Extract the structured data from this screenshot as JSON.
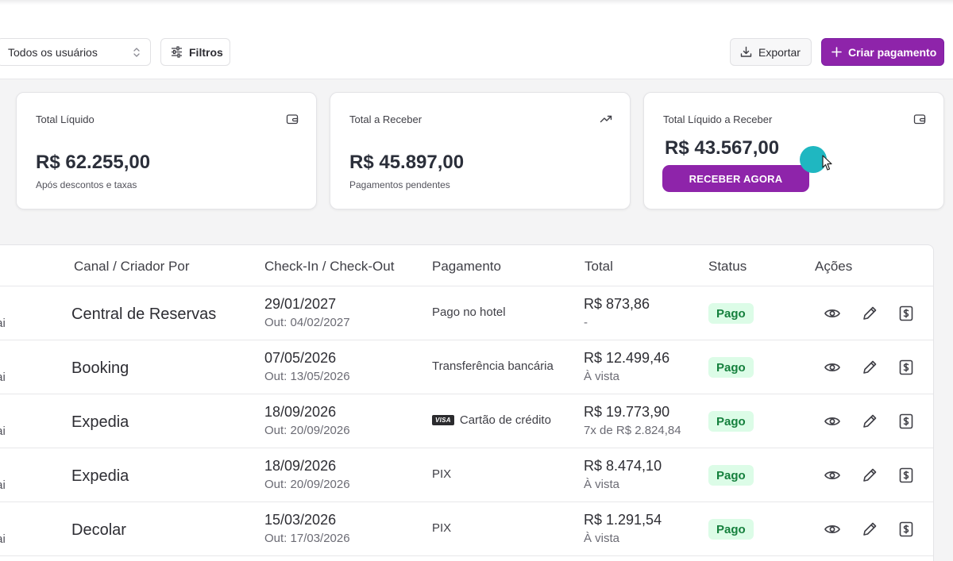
{
  "toolbar": {
    "user_filter_value": "Todos os usuários",
    "filters_label": "Filtros",
    "export_label": "Exportar",
    "create_label": "Criar pagamento"
  },
  "cards": [
    {
      "label": "Total Líquido",
      "value": "R$ 62.255,00",
      "sub": "Após descontos e taxas",
      "icon": "wallet-icon"
    },
    {
      "label": "Total a Receber",
      "value": "R$ 45.897,00",
      "sub": "Pagamentos pendentes",
      "icon": "trending-up-icon"
    },
    {
      "label": "Total Líquido a Receber",
      "value": "R$ 43.567,00",
      "button": "RECEBER AGORA",
      "icon": "wallet-icon"
    }
  ],
  "table": {
    "headers": {
      "channel": "Canal / Criador Por",
      "checkin": "Check-In / Check-Out",
      "payment": "Pagamento",
      "total": "Total",
      "status": "Status",
      "actions": "Ações"
    },
    "rows": [
      {
        "trunc": ".ai",
        "channel": "Central de Reservas",
        "checkin": "29/01/2027",
        "checkout": "Out: 04/02/2027",
        "payment": "Pago no hotel",
        "card_brand": "",
        "total": "R$ 873,86",
        "installments": "-",
        "status": "Pago"
      },
      {
        "trunc": ".ai",
        "channel": "Booking",
        "checkin": "07/05/2026",
        "checkout": "Out: 13/05/2026",
        "payment": "Transferência bancária",
        "card_brand": "",
        "total": "R$ 12.499,46",
        "installments": "À vista",
        "status": "Pago"
      },
      {
        "trunc": ".ai",
        "channel": "Expedia",
        "checkin": "18/09/2026",
        "checkout": "Out: 20/09/2026",
        "payment": "Cartão de crédito",
        "card_brand": "VISA",
        "total": "R$ 19.773,90",
        "installments": "7x de R$ 2.824,84",
        "status": "Pago"
      },
      {
        "trunc": ".ai",
        "channel": "Expedia",
        "checkin": "18/09/2026",
        "checkout": "Out: 20/09/2026",
        "payment": "PIX",
        "card_brand": "",
        "total": "R$ 8.474,10",
        "installments": "À vista",
        "status": "Pago"
      },
      {
        "trunc": ".ai",
        "channel": "Decolar",
        "checkin": "15/03/2026",
        "checkout": "Out: 17/03/2026",
        "payment": "PIX",
        "card_brand": "",
        "total": "R$ 1.291,54",
        "installments": "À vista",
        "status": "Pago"
      }
    ]
  },
  "colors": {
    "accent": "#8e24aa",
    "status_bg": "#dcfce7",
    "status_text": "#15803d",
    "cursor": "#1fb7c1"
  }
}
